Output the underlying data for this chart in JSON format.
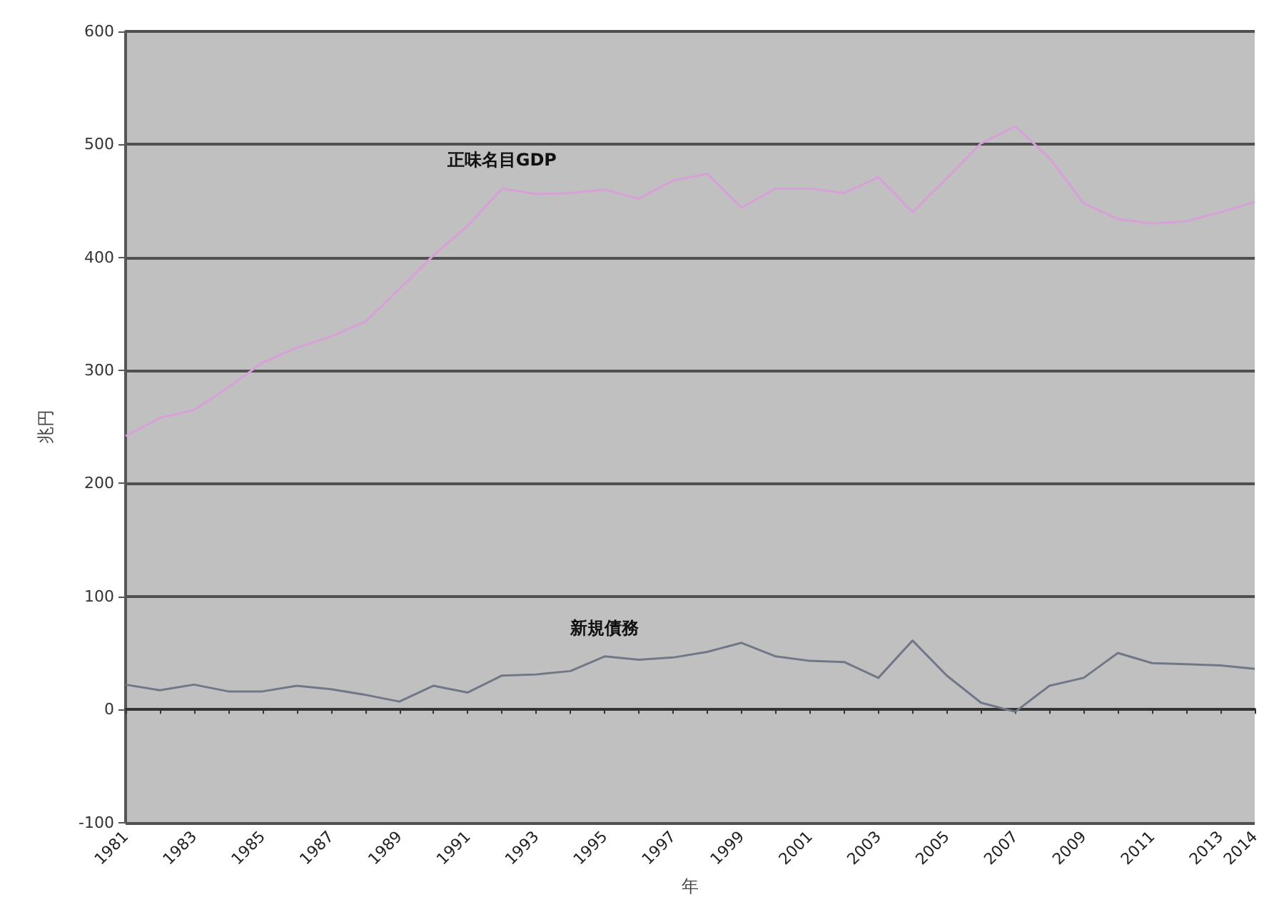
{
  "chart_data": {
    "type": "line",
    "xlabel": "年",
    "ylabel": "兆円",
    "categories": [
      "1981",
      null,
      "1983",
      null,
      "1985",
      null,
      "1987",
      null,
      "1989",
      null,
      "1991",
      null,
      "1993",
      null,
      "1995",
      null,
      "1997",
      null,
      "1999",
      null,
      "2001",
      null,
      "2003",
      null,
      "2005",
      null,
      "2007",
      null,
      "2009",
      null,
      "2011",
      null,
      "2013",
      "2014"
    ],
    "series": [
      {
        "name": "正味名目GDP",
        "color": "#d8a0d8",
        "values": [
          242,
          258,
          265,
          285,
          307,
          320,
          330,
          343,
          372,
          402,
          428,
          461,
          456,
          457,
          460,
          452,
          468,
          474,
          444,
          461,
          461,
          457,
          471,
          440,
          470,
          501,
          516,
          488,
          448,
          434,
          430,
          432,
          440,
          449
        ]
      },
      {
        "name": "新規債務",
        "color": "#707888",
        "values": [
          22,
          17,
          22,
          16,
          16,
          21,
          18,
          13,
          7,
          21,
          15,
          30,
          31,
          34,
          47,
          44,
          46,
          51,
          59,
          47,
          43,
          42,
          28,
          61,
          30,
          6,
          -2,
          21,
          28,
          50,
          41,
          40,
          39,
          36
        ]
      }
    ],
    "ylim": [
      -100,
      600
    ],
    "yticks": [
      -100,
      0,
      100,
      200,
      300,
      400,
      500,
      600
    ],
    "grid": "y",
    "legend": false,
    "marker": "none",
    "line_style": "solid"
  }
}
